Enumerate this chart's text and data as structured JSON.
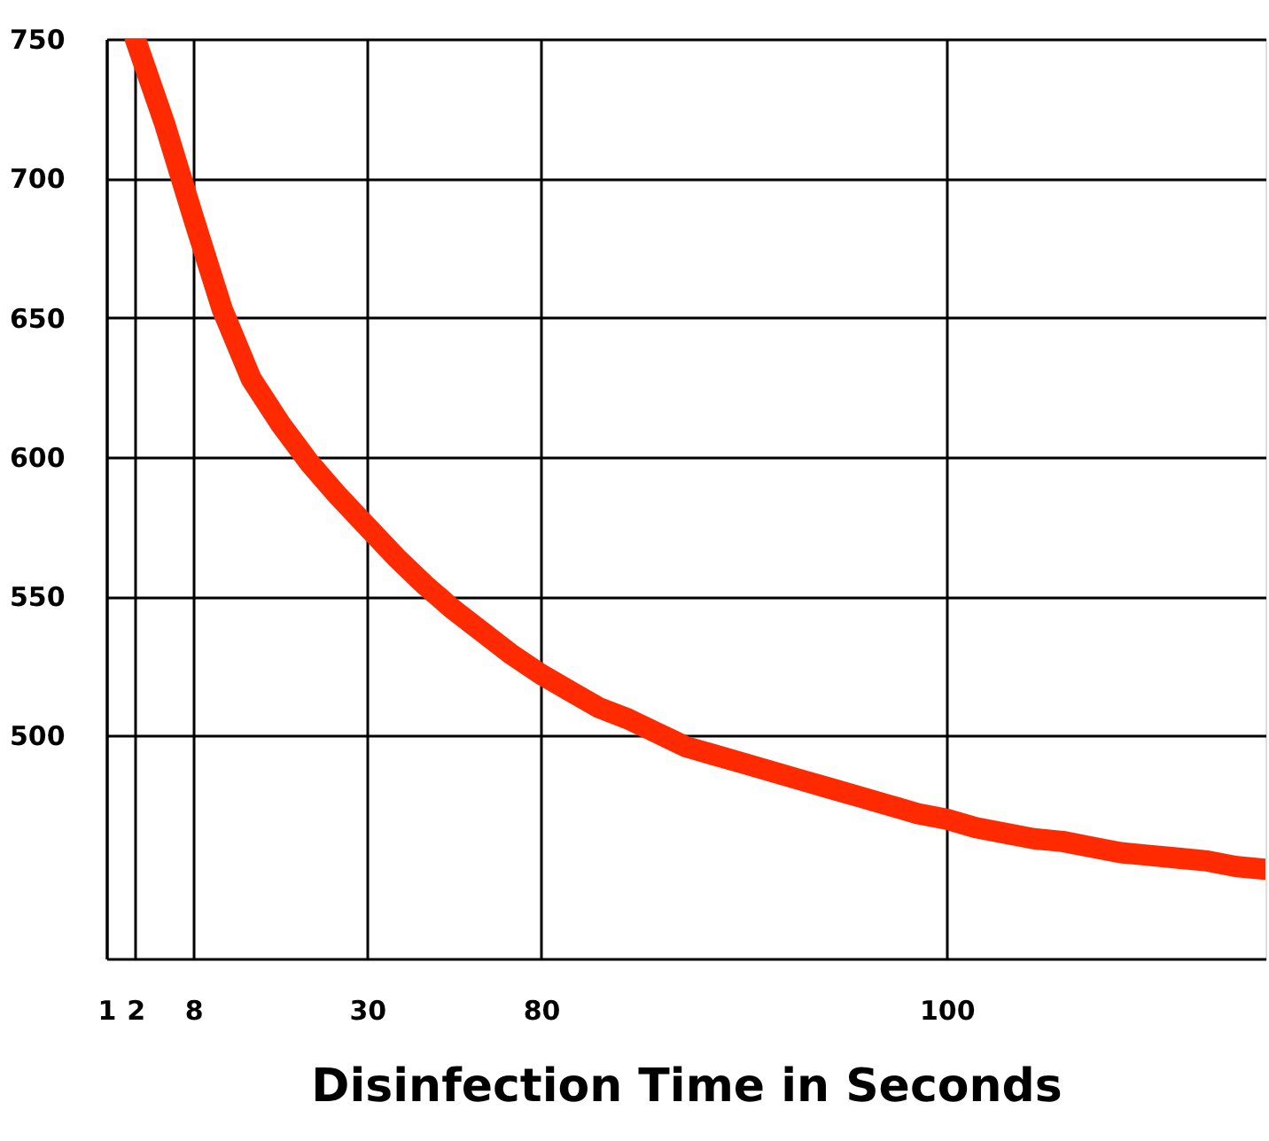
{
  "chart_data": {
    "type": "line",
    "xlabel": "Disinfection Time in Seconds",
    "categories": [
      "1",
      "2",
      null,
      "8",
      null,
      null,
      null,
      null,
      null,
      "30",
      null,
      null,
      null,
      null,
      null,
      "80",
      null,
      null,
      null,
      null,
      null,
      null,
      null,
      null,
      null,
      null,
      null,
      null,
      null,
      "100",
      null,
      null,
      null,
      null,
      null,
      null,
      null,
      null,
      null,
      null,
      null
    ],
    "series": [
      {
        "color": "#ff2a00",
        "values": [
          null,
          750,
          720,
          686,
          653,
          628,
          612,
          598,
          586,
          575,
          564,
          554,
          545,
          537,
          529,
          522,
          516,
          510,
          506,
          501,
          496,
          493,
          490,
          487,
          484,
          481,
          478,
          475,
          472,
          470,
          467,
          465,
          463,
          462,
          460,
          458,
          457,
          456,
          455,
          453,
          452
        ]
      }
    ],
    "ylim": [
      420,
      750
    ],
    "yticks": [
      500,
      550,
      600,
      650,
      700,
      750
    ],
    "grid": true,
    "marker": "none",
    "line_style": "solid"
  }
}
